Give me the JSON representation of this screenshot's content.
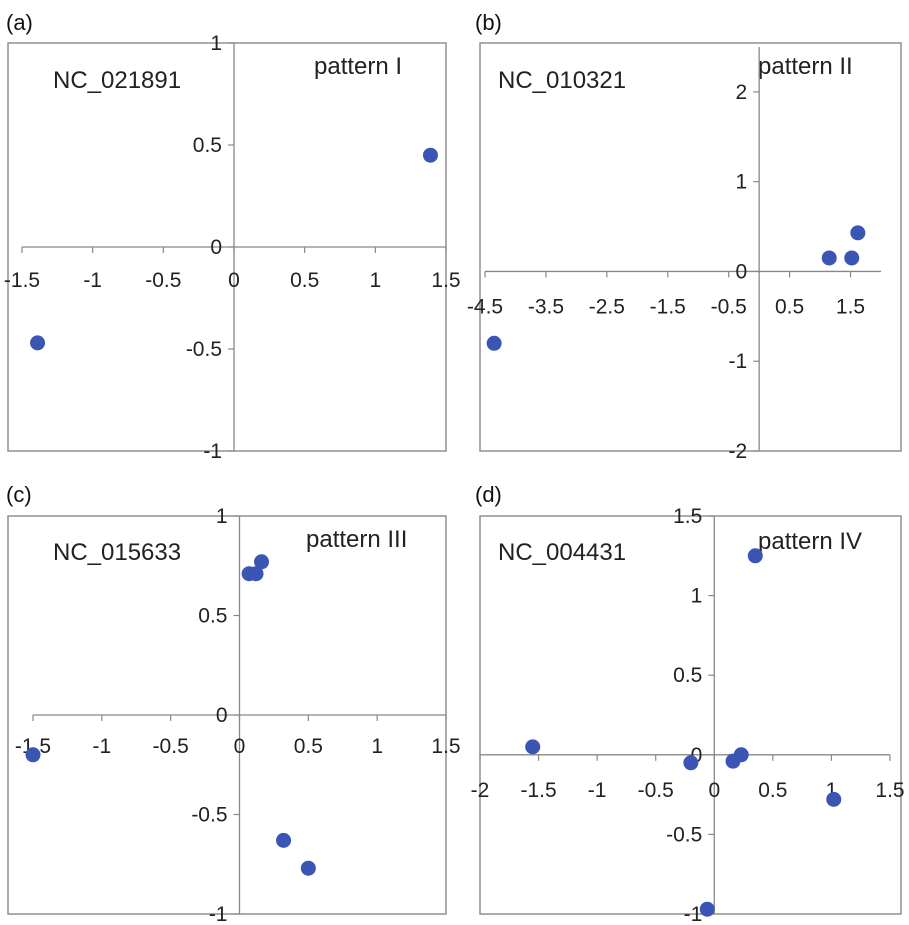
{
  "chart_data": [
    {
      "type": "scatter",
      "panel_label": "(a)",
      "series_label": "NC_021891",
      "pattern_label": "pattern I",
      "xlim": [
        -1.5,
        1.5
      ],
      "ylim": [
        -1,
        1
      ],
      "x_ticks": [
        "-1.5",
        "-1",
        "-0.5",
        "0",
        "0.5",
        "1",
        "1.5"
      ],
      "y_ticks": [
        "1",
        "0.5",
        "0",
        "-0.5",
        "-1"
      ],
      "points": [
        {
          "x": -1.39,
          "y": -0.47
        },
        {
          "x": 1.39,
          "y": 0.45
        }
      ],
      "color": "#3a55b4"
    },
    {
      "type": "scatter",
      "panel_label": "(b)",
      "series_label": "NC_010321",
      "pattern_label": "pattern II",
      "xlim": [
        -4.5,
        2.0
      ],
      "ylim": [
        -2,
        2.5
      ],
      "x_ticks": [
        "-4.5",
        "-3.5",
        "-2.5",
        "-1.5",
        "-0.5",
        "0.5",
        "1.5"
      ],
      "y_ticks": [
        "2",
        "1",
        "0",
        "-1",
        "-2"
      ],
      "points": [
        {
          "x": -4.35,
          "y": -0.8
        },
        {
          "x": 1.15,
          "y": 0.15
        },
        {
          "x": 1.52,
          "y": 0.15
        },
        {
          "x": 1.62,
          "y": 0.43
        }
      ],
      "color": "#3a55b4"
    },
    {
      "type": "scatter",
      "panel_label": "(c)",
      "series_label": "NC_015633",
      "pattern_label": "pattern III",
      "xlim": [
        -1.5,
        1.5
      ],
      "ylim": [
        -1,
        1
      ],
      "x_ticks": [
        "-1.5",
        "-1",
        "-0.5",
        "0",
        "0.5",
        "1",
        "1.5"
      ],
      "y_ticks": [
        "1",
        "0.5",
        "0",
        "-0.5",
        "-1"
      ],
      "points": [
        {
          "x": -1.5,
          "y": -0.2
        },
        {
          "x": 0.07,
          "y": 0.71
        },
        {
          "x": 0.12,
          "y": 0.71
        },
        {
          "x": 0.16,
          "y": 0.77
        },
        {
          "x": 0.32,
          "y": -0.63
        },
        {
          "x": 0.5,
          "y": -0.77
        }
      ],
      "color": "#3a55b4"
    },
    {
      "type": "scatter",
      "panel_label": "(d)",
      "series_label": "NC_004431",
      "pattern_label": "pattern IV",
      "xlim": [
        -2,
        1.5
      ],
      "ylim": [
        -1,
        1.5
      ],
      "x_ticks": [
        "-2",
        "-1.5",
        "-1",
        "-0.5",
        "0",
        "0.5",
        "1",
        "1.5"
      ],
      "y_ticks": [
        "1.5",
        "1",
        "0.5",
        "0",
        "-0.5",
        "-1"
      ],
      "points": [
        {
          "x": -1.55,
          "y": 0.05
        },
        {
          "x": -0.2,
          "y": -0.05
        },
        {
          "x": 0.16,
          "y": -0.04
        },
        {
          "x": 0.23,
          "y": 0.0
        },
        {
          "x": 0.35,
          "y": 1.25
        },
        {
          "x": 1.02,
          "y": -0.28
        },
        {
          "x": -0.06,
          "y": -0.97
        }
      ],
      "color": "#3a55b4"
    }
  ]
}
